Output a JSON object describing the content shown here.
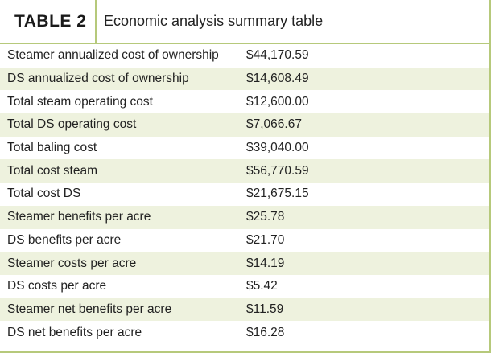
{
  "table": {
    "tag": "TABLE 2",
    "title": "Economic analysis summary table",
    "rows": [
      {
        "label": "Steamer annualized cost of ownership",
        "value": "$44,170.59"
      },
      {
        "label": "DS annualized cost of ownership",
        "value": "$14,608.49"
      },
      {
        "label": "Total steam operating cost",
        "value": "$12,600.00"
      },
      {
        "label": "Total DS operating cost",
        "value": "$7,066.67"
      },
      {
        "label": "Total baling cost",
        "value": "$39,040.00"
      },
      {
        "label": "Total cost steam",
        "value": "$56,770.59"
      },
      {
        "label": "Total cost DS",
        "value": "$21,675.15"
      },
      {
        "label": "Steamer benefits per acre",
        "value": "$25.78"
      },
      {
        "label": "DS benefits per acre",
        "value": "$21.70"
      },
      {
        "label": "Steamer costs per acre",
        "value": "$14.19"
      },
      {
        "label": "DS costs per acre",
        "value": "$5.42"
      },
      {
        "label": "Steamer net benefits per acre",
        "value": "$11.59"
      },
      {
        "label": "DS net benefits per acre",
        "value": "$16.28"
      }
    ]
  }
}
